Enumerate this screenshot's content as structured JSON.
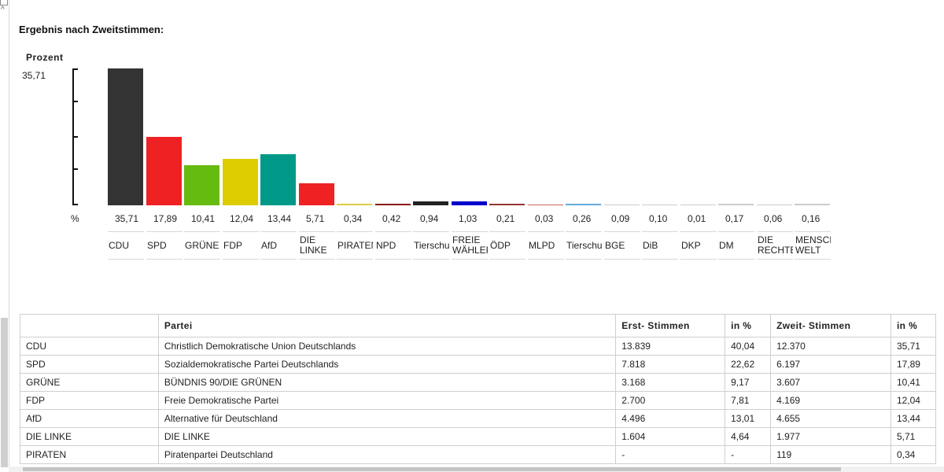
{
  "heading": "Ergebnis nach Zweitstimmen:",
  "chart_data": {
    "type": "bar",
    "ylabel": "Prozent",
    "ymax_label": "35,71",
    "unit_label": "%",
    "ylim": [
      0,
      35.71
    ],
    "categories": [
      "CDU",
      "SPD",
      "GRÜNE",
      "FDP",
      "AfD",
      "DIE LINKE",
      "PIRATEN",
      "NPD",
      "Tierschutzpartei",
      "FREIE WÄHLER",
      "ÖDP",
      "MLPD",
      "Tierschutzallianz",
      "BGE",
      "DiB",
      "DKP",
      "DM",
      "DIE RECHTE",
      "MENSCHLICHE WELT"
    ],
    "values": [
      35.71,
      17.89,
      10.41,
      12.04,
      13.44,
      5.71,
      0.34,
      0.42,
      0.94,
      1.03,
      0.21,
      0.03,
      0.26,
      0.09,
      0.1,
      0.01,
      0.17,
      0.06,
      0.16
    ],
    "value_labels": [
      "35,71",
      "17,89",
      "10,41",
      "12,04",
      "13,44",
      "5,71",
      "0,34",
      "0,42",
      "0,94",
      "1,03",
      "0,21",
      "0,03",
      "0,26",
      "0,09",
      "0,10",
      "0,01",
      "0,17",
      "0,06",
      "0,16"
    ],
    "colors": [
      "#333333",
      "#ee2222",
      "#66bb11",
      "#ddcc00",
      "#009988",
      "#ee2222",
      "#ddcc44",
      "#8b1a1a",
      "#222222",
      "#0000cc",
      "#993333",
      "#cc6666",
      "#66aadd",
      "#cccccc",
      "#cccccc",
      "#cccccc",
      "#cccccc",
      "#cccccc",
      "#cccccc"
    ]
  },
  "table": {
    "headers": [
      "",
      "Partei",
      "Erst- Stimmen",
      "in %",
      "Zweit- Stimmen",
      "in %"
    ],
    "rows": [
      [
        "CDU",
        "Christlich Demokratische Union Deutschlands",
        "13.839",
        "40,04",
        "12.370",
        "35,71"
      ],
      [
        "SPD",
        "Sozialdemokratische Partei Deutschlands",
        "7.818",
        "22,62",
        "6.197",
        "17,89"
      ],
      [
        "GRÜNE",
        "BÜNDNIS 90/DIE GRÜNEN",
        "3.168",
        "9,17",
        "3.607",
        "10,41"
      ],
      [
        "FDP",
        "Freie Demokratische Partei",
        "2.700",
        "7,81",
        "4.169",
        "12,04"
      ],
      [
        "AfD",
        "Alternative für Deutschland",
        "4.496",
        "13,01",
        "4.655",
        "13,44"
      ],
      [
        "DIE LINKE",
        "DIE LINKE",
        "1.604",
        "4,64",
        "1.977",
        "5,71"
      ],
      [
        "PIRATEN",
        "Piratenpartei Deutschland",
        "-",
        "-",
        "119",
        "0,34"
      ]
    ]
  }
}
